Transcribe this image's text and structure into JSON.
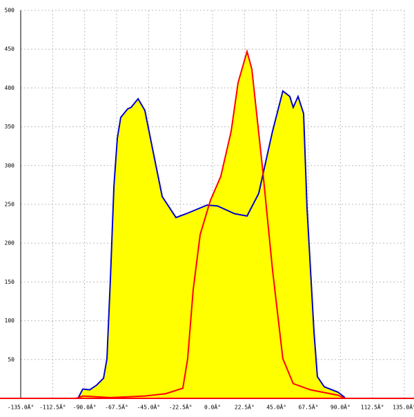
{
  "chart_data": {
    "type": "area",
    "xlim": [
      -135,
      135
    ],
    "ylim": [
      0,
      500
    ],
    "xticks": [
      {
        "value": -135,
        "label": "-135.0Â°"
      },
      {
        "value": -112.5,
        "label": "-112.5Â°"
      },
      {
        "value": -90,
        "label": "-90.0Â°"
      },
      {
        "value": -67.5,
        "label": "-67.5Â°"
      },
      {
        "value": -45,
        "label": "-45.0Â°"
      },
      {
        "value": -22.5,
        "label": "-22.5Â°"
      },
      {
        "value": 0,
        "label": "0.0Â°"
      },
      {
        "value": 22.5,
        "label": "22.5Â°"
      },
      {
        "value": 45,
        "label": "45.0Â°"
      },
      {
        "value": 67.5,
        "label": "67.5Â°"
      },
      {
        "value": 90,
        "label": "90.0Â°"
      },
      {
        "value": 112.5,
        "label": "112.5Â°"
      },
      {
        "value": 135,
        "label": "135.0Â°"
      }
    ],
    "yticks": [
      50,
      100,
      150,
      200,
      250,
      300,
      350,
      400,
      450,
      500
    ],
    "grid": true,
    "fill_color": "#ffff00",
    "series": [
      {
        "color": "#0000cc",
        "x": [
          -94.7,
          -91.3,
          -86.4,
          -81.6,
          -76.7,
          -74.3,
          -71.8,
          -69.4,
          -67.0,
          -64.6,
          -59.7,
          -57.3,
          -52.4,
          -47.6,
          -42.7,
          -35.4,
          -25.7,
          -18.4,
          -3.9,
          3.4,
          15.5,
          24.3,
          32.5,
          42.2,
          49.5,
          54.4,
          56.8,
          60.2,
          64.1,
          66.5,
          71.4,
          73.8,
          78.6,
          88.3,
          93.2
        ],
        "values": [
          0,
          12,
          11,
          17,
          26,
          51,
          157,
          273,
          335,
          362,
          373,
          375,
          386,
          371,
          326,
          260,
          233,
          238,
          249,
          248,
          238,
          235,
          264,
          344,
          396,
          389,
          375,
          389,
          367,
          246,
          86,
          28,
          15,
          8,
          1
        ]
      },
      {
        "color": "#ff0000",
        "x": [
          -135,
          -96,
          -91.3,
          -71.8,
          -47.6,
          -33,
          -20.9,
          -17.5,
          -13.6,
          -8.7,
          -1.5,
          5.8,
          13.1,
          18,
          24.3,
          27.7,
          35,
          42.2,
          49.5,
          56.8,
          68.9,
          88.3,
          93.2,
          135
        ],
        "values": [
          0,
          0,
          3,
          1,
          3,
          6,
          13,
          51,
          140,
          211,
          255,
          286,
          344,
          407,
          447,
          424,
          300,
          166,
          51,
          19,
          11,
          4,
          0,
          0
        ]
      }
    ]
  }
}
